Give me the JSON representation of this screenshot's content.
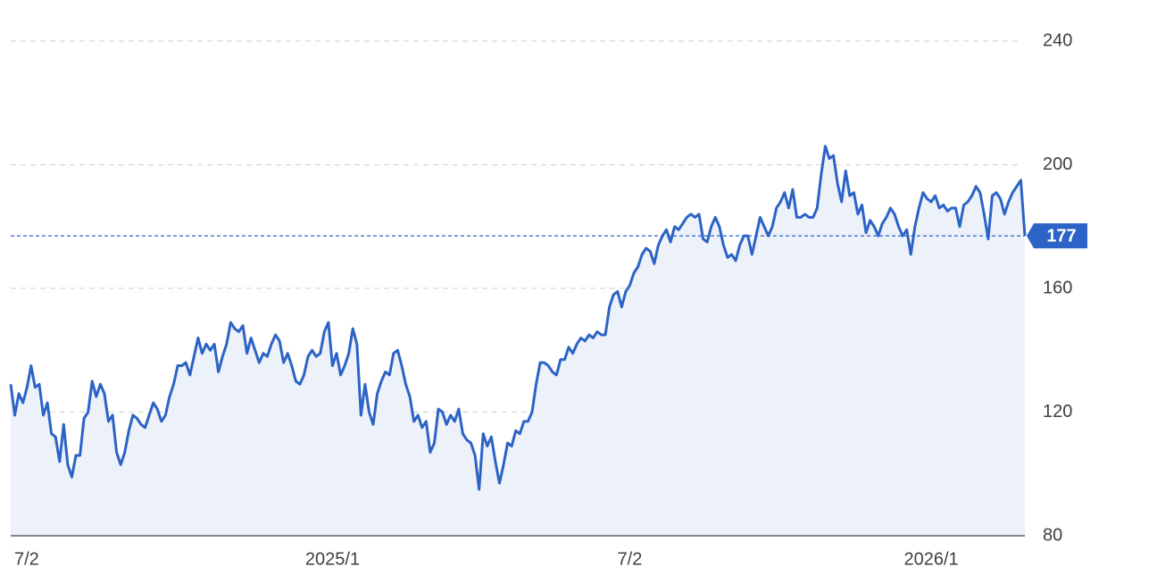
{
  "chart_data": {
    "type": "line",
    "categories": [
      "7/2",
      null,
      null,
      null,
      null,
      null,
      null,
      null,
      null,
      null,
      null,
      null,
      null,
      null,
      null,
      null,
      null,
      null,
      null,
      null,
      null,
      null,
      null,
      null,
      null,
      null,
      null,
      null,
      null,
      null,
      null,
      null,
      null,
      null,
      null,
      null,
      null,
      null,
      null,
      null,
      null,
      null,
      null,
      null,
      null,
      null,
      null,
      null,
      null,
      null,
      null,
      null,
      null,
      null,
      null,
      null,
      null,
      null,
      null,
      null,
      null,
      null,
      null,
      null,
      null,
      null,
      null,
      null,
      null,
      null,
      null,
      null,
      null,
      null,
      null,
      null,
      null,
      null,
      null,
      "2025/1",
      null,
      null,
      null,
      null,
      null,
      null,
      null,
      null,
      null,
      null,
      null,
      null,
      null,
      null,
      null,
      null,
      null,
      null,
      null,
      null,
      null,
      null,
      null,
      null,
      null,
      null,
      null,
      null,
      null,
      null,
      null,
      null,
      null,
      null,
      null,
      null,
      null,
      null,
      null,
      null,
      null,
      null,
      null,
      null,
      null,
      null,
      null,
      null,
      null,
      null,
      null,
      null,
      null,
      null,
      null,
      null,
      null,
      null,
      null,
      null,
      null,
      null,
      null,
      null,
      null,
      null,
      null,
      null,
      null,
      null,
      null,
      null,
      "7/2",
      null,
      null,
      null,
      null,
      null,
      null,
      null,
      null,
      null,
      null,
      null,
      null,
      null,
      null,
      null,
      null,
      null,
      null,
      null,
      null,
      null,
      null,
      null,
      null,
      null,
      null,
      null,
      null,
      null,
      null,
      null,
      null,
      null,
      null,
      null,
      null,
      null,
      null,
      null,
      null,
      null,
      null,
      null,
      null,
      null,
      null,
      null,
      null,
      null,
      null,
      null,
      null,
      null,
      null,
      null,
      null,
      null,
      null,
      null,
      null,
      null,
      null,
      null,
      null,
      null,
      null,
      null,
      null,
      null,
      null,
      null,
      null,
      null,
      "2026/1",
      null,
      null,
      null,
      null,
      null,
      null,
      null,
      null,
      null,
      null,
      null,
      null,
      null,
      null,
      null,
      null,
      null,
      null,
      null,
      null,
      null,
      null,
      null
    ],
    "series": [
      {
        "color": "#2c63c6",
        "values": [
          129,
          119,
          126,
          123,
          128,
          135,
          128,
          129,
          119,
          123,
          113,
          112,
          104,
          116,
          103,
          99,
          106,
          106,
          118,
          120,
          130,
          125,
          129,
          126,
          117,
          119,
          107,
          103,
          107,
          114,
          119,
          118,
          116,
          115,
          119,
          123,
          121,
          117,
          119,
          125,
          129,
          135,
          135,
          136,
          132,
          138,
          144,
          139,
          142,
          140,
          142,
          133,
          138,
          142,
          149,
          147,
          146,
          148,
          139,
          144,
          140,
          136,
          139,
          138,
          142,
          145,
          143,
          136,
          139,
          135,
          130,
          129,
          132,
          138,
          140,
          138,
          139,
          146,
          149,
          135,
          139,
          132,
          135,
          139,
          147,
          142,
          119,
          129,
          120,
          116,
          126,
          130,
          133,
          132,
          139,
          140,
          135,
          129,
          125,
          117,
          119,
          115,
          117,
          107,
          110,
          121,
          120,
          116,
          119,
          117,
          121,
          113,
          111,
          110,
          106,
          95,
          113,
          109,
          112,
          104,
          97,
          103,
          110,
          109,
          114,
          113,
          117,
          117,
          120,
          129,
          136,
          136,
          135,
          133,
          132,
          137,
          137,
          141,
          139,
          142,
          144,
          143,
          145,
          144,
          146,
          145,
          145,
          154,
          158,
          159,
          154,
          159,
          161,
          165,
          167,
          171,
          173,
          172,
          168,
          174,
          177,
          179,
          175,
          180,
          179,
          181,
          183,
          184,
          183,
          184,
          176,
          175,
          180,
          183,
          180,
          174,
          170,
          171,
          169,
          174,
          177,
          177,
          171,
          177,
          183,
          180,
          177,
          180,
          186,
          188,
          191,
          186,
          192,
          183,
          183,
          184,
          183,
          183,
          186,
          197,
          206,
          202,
          203,
          194,
          188,
          198,
          190,
          191,
          184,
          187,
          178,
          182,
          180,
          177,
          181,
          183,
          186,
          184,
          180,
          177,
          179,
          171,
          180,
          186,
          191,
          189,
          188,
          190,
          186,
          187,
          185,
          186,
          186,
          180,
          187,
          188,
          190,
          193,
          191,
          184,
          176,
          190,
          191,
          189,
          184,
          188,
          191,
          193,
          195,
          177
        ]
      }
    ],
    "ylim": [
      80,
      240
    ],
    "yticks": [
      80,
      120,
      160,
      200,
      240
    ],
    "grid": true,
    "fill_color": "#edf1fa"
  }
}
